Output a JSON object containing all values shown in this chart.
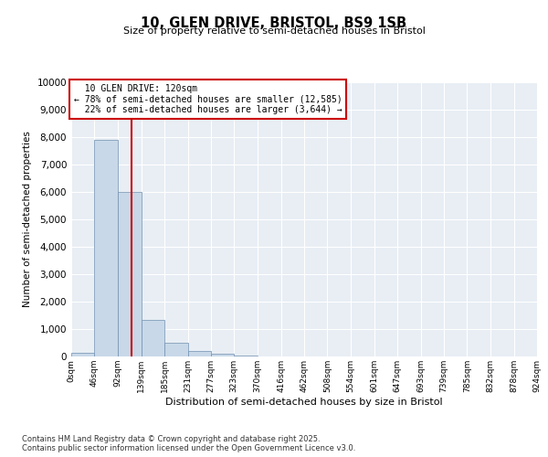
{
  "title1": "10, GLEN DRIVE, BRISTOL, BS9 1SB",
  "title2": "Size of property relative to semi-detached houses in Bristol",
  "xlabel": "Distribution of semi-detached houses by size in Bristol",
  "ylabel": "Number of semi-detached properties",
  "property_size": 120,
  "property_label": "10 GLEN DRIVE: 120sqm",
  "pct_smaller": 78,
  "count_smaller": 12585,
  "pct_larger": 22,
  "count_larger": 3644,
  "bin_edges": [
    0,
    46,
    92,
    139,
    185,
    231,
    277,
    323,
    370,
    416,
    462,
    508,
    554,
    601,
    647,
    693,
    739,
    785,
    832,
    878,
    924
  ],
  "bin_labels": [
    "0sqm",
    "46sqm",
    "92sqm",
    "139sqm",
    "185sqm",
    "231sqm",
    "277sqm",
    "323sqm",
    "370sqm",
    "416sqm",
    "462sqm",
    "508sqm",
    "554sqm",
    "601sqm",
    "647sqm",
    "693sqm",
    "739sqm",
    "785sqm",
    "832sqm",
    "878sqm",
    "924sqm"
  ],
  "counts": [
    150,
    7900,
    6000,
    1350,
    500,
    200,
    100,
    40,
    5,
    2,
    1,
    0,
    0,
    0,
    0,
    0,
    0,
    0,
    0,
    0
  ],
  "bar_color": "#c8d8e8",
  "bar_edge_color": "#7090b0",
  "line_color": "#cc0000",
  "box_color": "#cc0000",
  "background_color": "#e8eef4",
  "grid_color": "#ffffff",
  "ylim": [
    0,
    10000
  ],
  "yticks": [
    0,
    1000,
    2000,
    3000,
    4000,
    5000,
    6000,
    7000,
    8000,
    9000,
    10000
  ],
  "footnote1": "Contains HM Land Registry data © Crown copyright and database right 2025.",
  "footnote2": "Contains public sector information licensed under the Open Government Licence v3.0."
}
